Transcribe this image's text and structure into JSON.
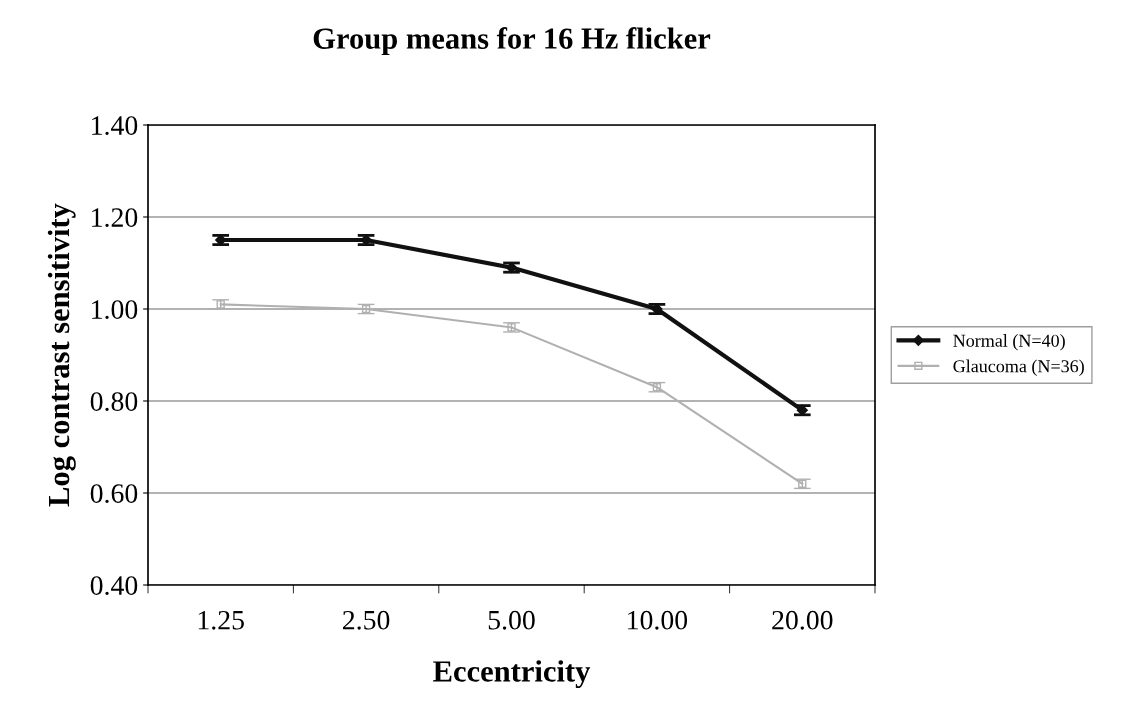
{
  "chart_data": {
    "type": "line",
    "title": "Group means for 16 Hz flicker",
    "xlabel": "Eccentricity",
    "ylabel": "Log contrast sensitivity",
    "categories": [
      "1.25",
      "2.50",
      "5.00",
      "10.00",
      "20.00"
    ],
    "series": [
      {
        "name": "Normal (N=40)",
        "color": "#111111",
        "marker": "diamond",
        "values": [
          1.15,
          1.15,
          1.09,
          1.0,
          0.78
        ],
        "errors": [
          0.01,
          0.01,
          0.01,
          0.01,
          0.01
        ]
      },
      {
        "name": "Glaucoma (N=36)",
        "color": "#b0b0b0",
        "marker": "square",
        "values": [
          1.01,
          1.0,
          0.96,
          0.83,
          0.62
        ],
        "errors": [
          0.01,
          0.01,
          0.01,
          0.01,
          0.01
        ]
      }
    ],
    "ylim": [
      0.4,
      1.4
    ],
    "yticks": [
      {
        "value": 0.4,
        "label": "0.40"
      },
      {
        "value": 0.6,
        "label": "0.60"
      },
      {
        "value": 0.8,
        "label": "0.80"
      },
      {
        "value": 1.0,
        "label": "1.00"
      },
      {
        "value": 1.2,
        "label": "1.20"
      },
      {
        "value": 1.4,
        "label": "1.40"
      }
    ],
    "grid": "y",
    "legend": "right",
    "line_style": "solid"
  }
}
